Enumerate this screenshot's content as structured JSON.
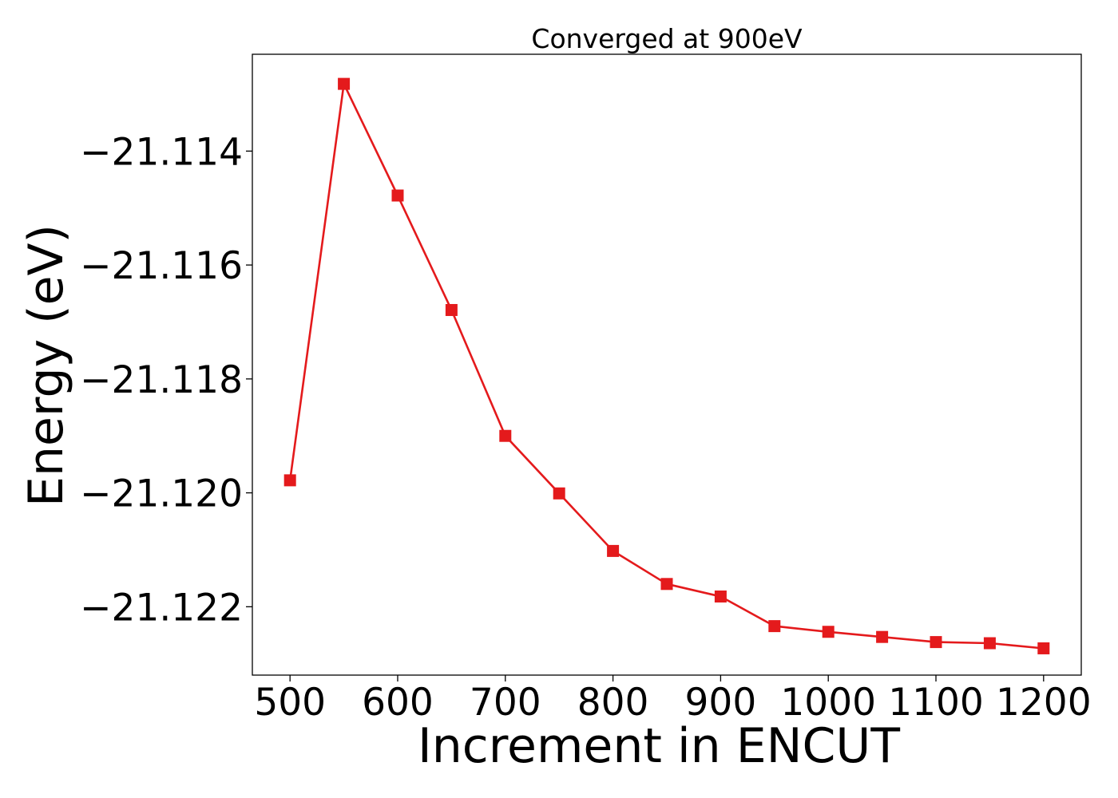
{
  "chart_data": {
    "type": "line",
    "title": "Converged at 900eV",
    "xlabel": "Increment in ENCUT",
    "ylabel": "Energy (eV)",
    "x": [
      500,
      550,
      600,
      650,
      700,
      750,
      800,
      850,
      900,
      950,
      1000,
      1050,
      1100,
      1150,
      1200
    ],
    "series": [
      {
        "values": [
          -21.11978,
          -21.11282,
          -21.11478,
          -21.11679,
          -21.119,
          -21.12001,
          -21.12102,
          -21.1216,
          -21.12182,
          -21.12234,
          -21.12244,
          -21.12253,
          -21.12262,
          -21.12264,
          -21.12273
        ],
        "color": "#e41a1c",
        "marker": "square"
      }
    ],
    "xticks": [
      500,
      600,
      700,
      800,
      900,
      1000,
      1100,
      1200
    ],
    "xtick_labels": [
      "500",
      "600",
      "700",
      "800",
      "900",
      "1000",
      "1100",
      "1200"
    ],
    "yticks": [
      -21.114,
      -21.116,
      -21.118,
      -21.12,
      -21.122
    ],
    "ytick_labels": [
      "−21.114",
      "−21.116",
      "−21.118",
      "−21.120",
      "−21.122"
    ],
    "xlim": [
      465,
      1235
    ],
    "ylim": [
      -21.1232,
      -21.1123
    ],
    "grid": false,
    "legend": "none"
  }
}
